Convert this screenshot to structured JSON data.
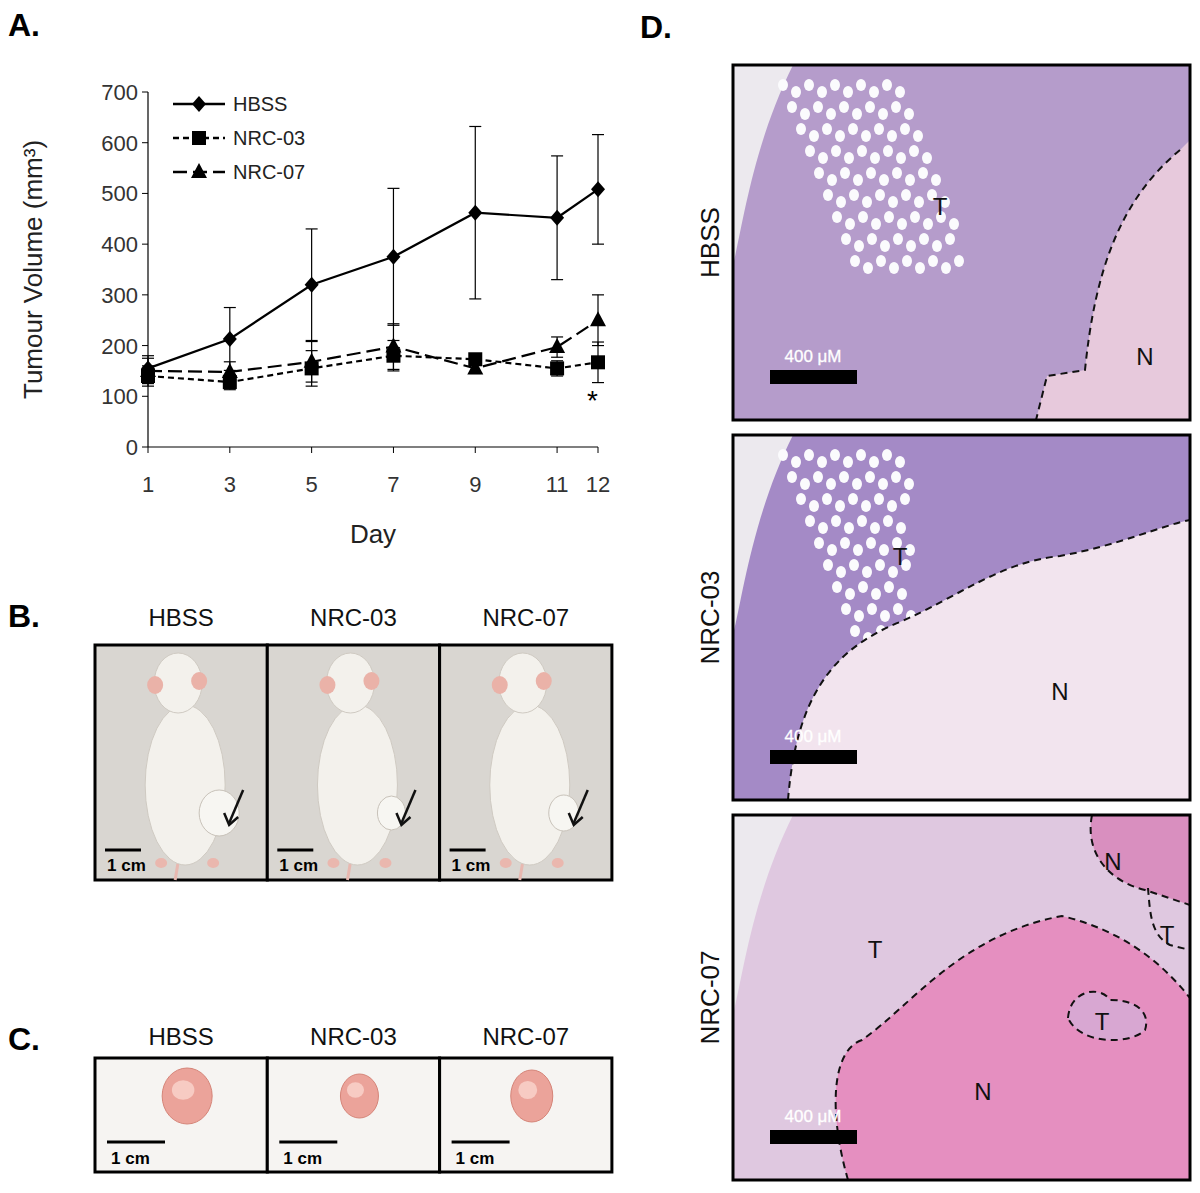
{
  "chart_data": {
    "type": "line",
    "panel_label": "A.",
    "x_label": "Day",
    "y_label": "Tumour Volume (mm³)",
    "x": [
      1,
      3,
      5,
      7,
      9,
      11,
      12
    ],
    "xlim": [
      1,
      12
    ],
    "xticks": [
      1,
      3,
      5,
      7,
      9,
      11,
      12
    ],
    "ylim": [
      0,
      700
    ],
    "yticks": [
      0,
      100,
      200,
      300,
      400,
      500,
      600,
      700
    ],
    "grid": false,
    "legend": "top-left",
    "series": [
      {
        "name": "HBSS",
        "color": "#000000",
        "marker": "diamond",
        "line_style": "solid",
        "values": [
          155,
          213,
          320,
          375,
          462,
          452,
          508
        ],
        "errors": [
          25,
          62,
          110,
          135,
          170,
          122,
          108
        ]
      },
      {
        "name": "NRC-03",
        "color": "#000000",
        "marker": "square",
        "line_style": "dashed",
        "values": [
          140,
          128,
          155,
          180,
          173,
          155,
          167
        ],
        "errors": [
          20,
          15,
          35,
          30,
          10,
          15,
          40
        ]
      },
      {
        "name": "NRC-07",
        "color": "#000000",
        "marker": "triangle",
        "line_style": "long-dash",
        "values": [
          150,
          148,
          168,
          198,
          155,
          197,
          250
        ],
        "errors": [
          25,
          20,
          40,
          45,
          10,
          20,
          50
        ]
      }
    ],
    "annotations": [
      {
        "text": "*",
        "x": 12,
        "y": 100
      }
    ]
  },
  "panel_b": {
    "label": "B.",
    "columns": [
      "HBSS",
      "NRC-03",
      "NRC-07"
    ],
    "scale_bars": [
      "1 cm",
      "1 cm",
      "1 cm"
    ]
  },
  "panel_c": {
    "label": "C.",
    "columns": [
      "HBSS",
      "NRC-03",
      "NRC-07"
    ],
    "scale_bars": [
      "1 cm",
      "1 cm",
      "1 cm"
    ]
  },
  "panel_d": {
    "label": "D.",
    "rows": [
      {
        "name": "HBSS",
        "regions": [
          "T",
          "N"
        ],
        "scale_bar": "400 μM"
      },
      {
        "name": "NRC-03",
        "regions": [
          "T",
          "N"
        ],
        "scale_bar": "400 μM"
      },
      {
        "name": "NRC-07",
        "regions": [
          "T",
          "N",
          "T",
          "N",
          "T"
        ],
        "scale_bar": "400 μM"
      }
    ]
  }
}
